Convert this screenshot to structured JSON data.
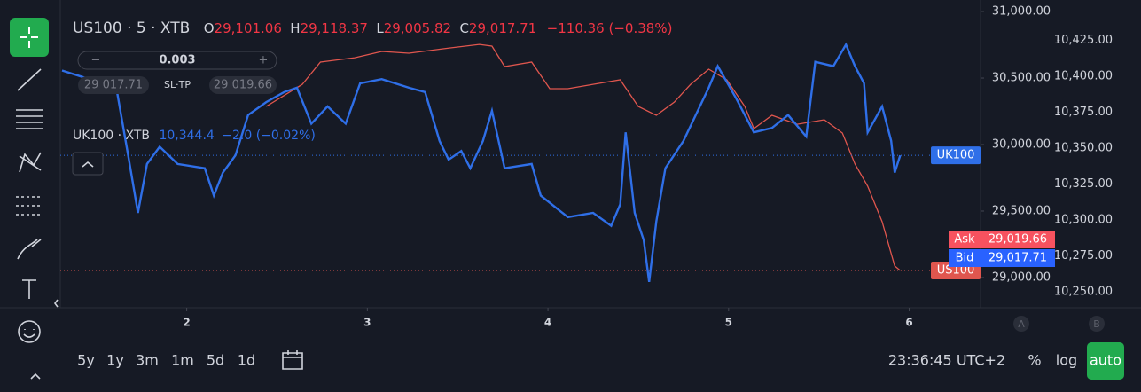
{
  "header": {
    "symbol": "US100 · 5 · XTB",
    "open_label": "O",
    "open": "29,101.06",
    "high_label": "H",
    "high": "29,118.37",
    "low_label": "L",
    "low": "29,005.82",
    "close_label": "C",
    "close": "29,017.71",
    "change": "−110.36 (−0.38%)"
  },
  "order": {
    "minus": "−",
    "quantity": "0.003",
    "plus": "+",
    "sell": "29 017.71",
    "mode": "SL·TP",
    "buy": "29 019.66"
  },
  "overlay": {
    "symbol": "UK100 · XTB",
    "value": "10,344.4",
    "change": "−2.0 (−0.02%)"
  },
  "chart_data": {
    "type": "line",
    "xlim": [
      1.3,
      6.39
    ],
    "xticks": [
      2,
      3,
      4,
      5,
      6
    ],
    "ylim": [
      28773,
      31087
    ],
    "yticks": [
      {
        "value": 29000,
        "label": "29,000.00"
      },
      {
        "value": 29500,
        "label": "29,500.00"
      },
      {
        "value": 30000,
        "label": "30,000.00"
      },
      {
        "value": 30500,
        "label": "30,500.00"
      },
      {
        "value": 31000,
        "label": "31,000.00"
      }
    ],
    "y2lim": [
      10239,
      10453
    ],
    "y2ticks": [
      {
        "value": 10250,
        "label": "10,250.00"
      },
      {
        "value": 10275,
        "label": "10,275.00"
      },
      {
        "value": 10300,
        "label": "10,300.00"
      },
      {
        "value": 10325,
        "label": "10,325.00"
      },
      {
        "value": 10350,
        "label": "10,350.00"
      },
      {
        "value": 10375,
        "label": "10,375.00"
      },
      {
        "value": 10400,
        "label": "10,400.00"
      },
      {
        "value": 10425,
        "label": "10,425.00"
      }
    ],
    "series": [
      {
        "name": "US100",
        "color": "#e0564e",
        "x": [
          2.44,
          2.64,
          2.74,
          2.93,
          3.08,
          3.23,
          3.42,
          3.62,
          3.69,
          3.76,
          3.91,
          4.01,
          4.11,
          4.25,
          4.4,
          4.5,
          4.6,
          4.7,
          4.79,
          4.89,
          4.99,
          5.09,
          5.14,
          5.24,
          5.38,
          5.53,
          5.63,
          5.7,
          5.77,
          5.85,
          5.92,
          5.95
        ],
        "values": [
          30287,
          30453,
          30620,
          30653,
          30700,
          30687,
          30720,
          30753,
          30740,
          30587,
          30620,
          30420,
          30420,
          30453,
          30487,
          30287,
          30220,
          30320,
          30453,
          30567,
          30487,
          30287,
          30120,
          30220,
          30153,
          30187,
          30087,
          29853,
          29687,
          29420,
          29087,
          29053
        ]
      },
      {
        "name": "UK100",
        "color": "#2f6fe8",
        "axis": "y2",
        "x": [
          1.31,
          1.46,
          1.61,
          1.68,
          1.73,
          1.78,
          1.85,
          1.95,
          2.1,
          2.15,
          2.2,
          2.27,
          2.34,
          2.44,
          2.54,
          2.61,
          2.69,
          2.78,
          2.88,
          2.96,
          3.08,
          3.23,
          3.32,
          3.4,
          3.45,
          3.52,
          3.57,
          3.64,
          3.69,
          3.76,
          3.91,
          3.96,
          4.11,
          4.25,
          4.35,
          4.4,
          4.43,
          4.48,
          4.53,
          4.56,
          4.6,
          4.65,
          4.75,
          4.89,
          4.94,
          5.04,
          5.14,
          5.24,
          5.33,
          5.43,
          5.48,
          5.58,
          5.65,
          5.7,
          5.75,
          5.77,
          5.85,
          5.9,
          5.92,
          5.95
        ],
        "values": [
          10404,
          10398,
          10392,
          10342,
          10305,
          10339,
          10351,
          10339,
          10336,
          10317,
          10333,
          10345,
          10373,
          10382,
          10389,
          10392,
          10367,
          10379,
          10367,
          10395,
          10398,
          10392,
          10389,
          10355,
          10342,
          10348,
          10336,
          10355,
          10376,
          10336,
          10339,
          10317,
          10302,
          10305,
          10296,
          10311,
          10361,
          10305,
          10286,
          10257,
          10299,
          10336,
          10355,
          10392,
          10407,
          10385,
          10361,
          10364,
          10373,
          10358,
          10410,
          10407,
          10422,
          10407,
          10395,
          10361,
          10379,
          10355,
          10333,
          10345
        ]
      }
    ]
  },
  "price_tags": {
    "ask_label": "Ask",
    "ask": "29,019.66",
    "bid_label": "Bid",
    "bid": "29,017.71"
  },
  "scale_modes": [
    "A",
    "B"
  ],
  "ranges": [
    "5y",
    "1y",
    "3m",
    "1m",
    "5d",
    "1d"
  ],
  "clock": "23:36:45 UTC+2",
  "options": [
    "%",
    "log",
    "auto"
  ]
}
